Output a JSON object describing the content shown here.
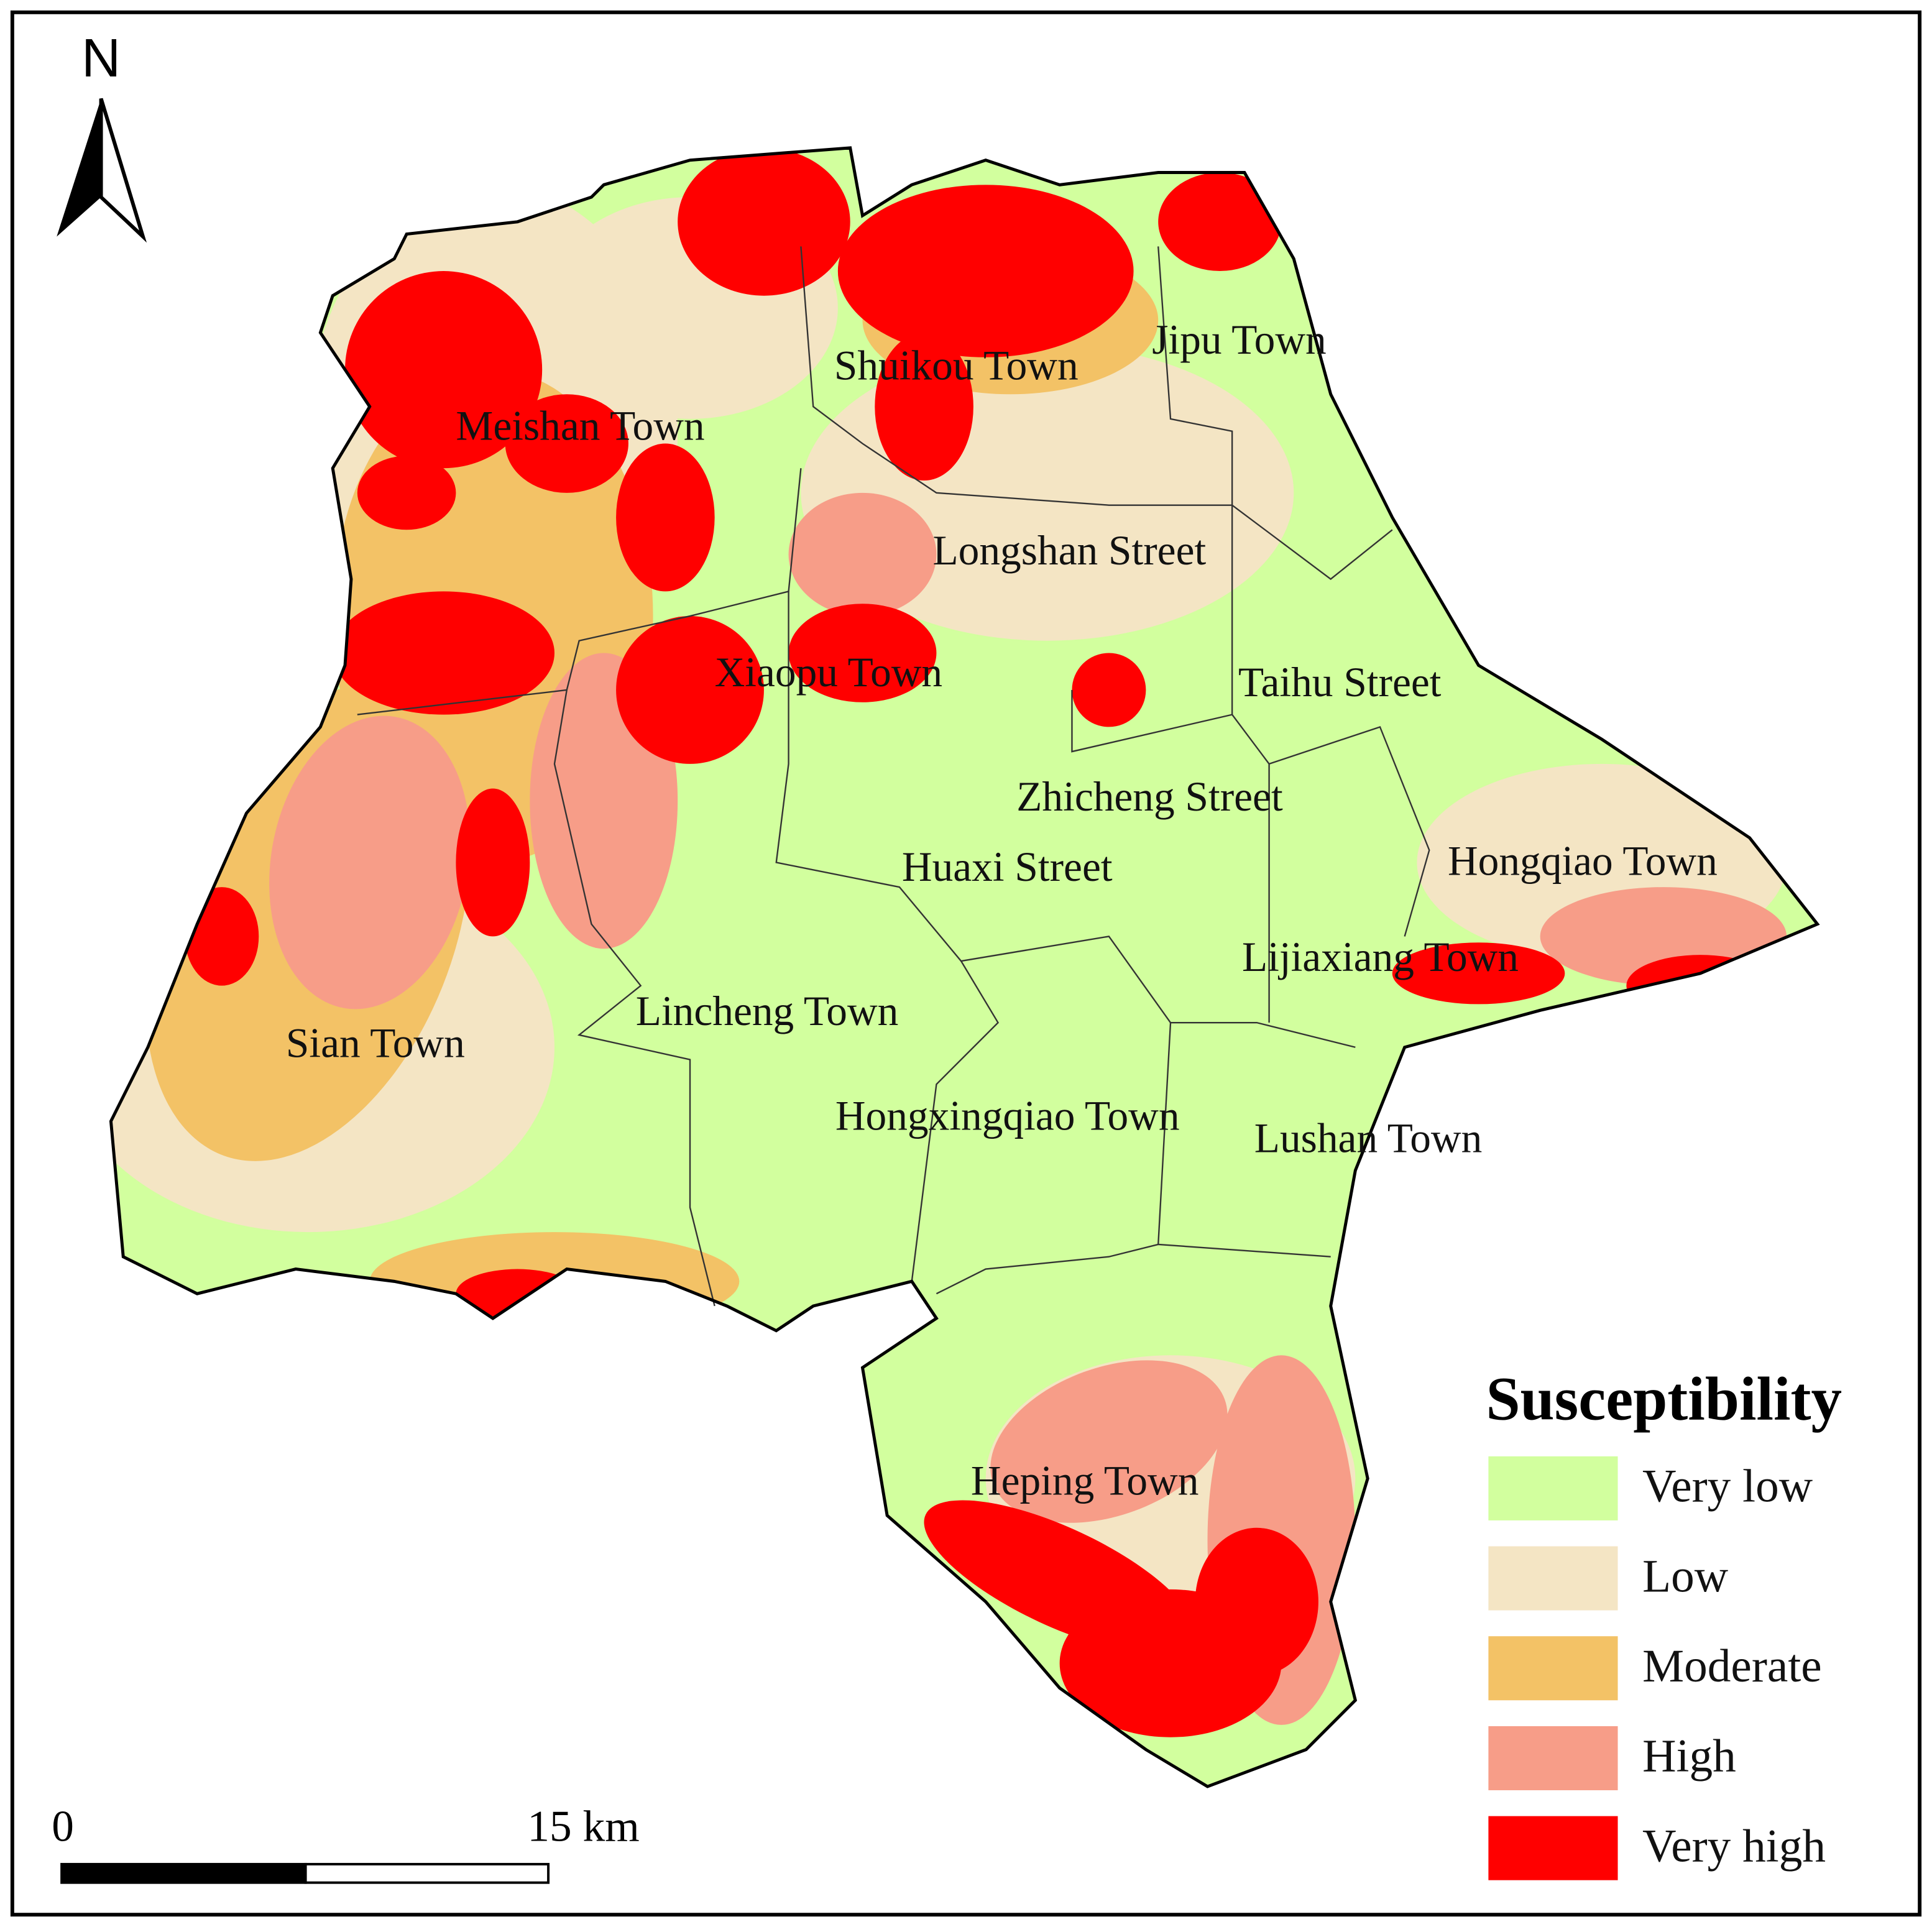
{
  "north_label": "N",
  "places": [
    "Jipu Town",
    "Shuikou Town",
    "Meishan Town",
    "Longshan Street",
    "Xiaopu Town",
    "Taihu Street",
    "Zhicheng Street",
    "Huaxi Street",
    "Hongqiao Town",
    "Lijiaxiang Town",
    "Lincheng Town",
    "Sian Town",
    "Hongxingqiao Town",
    "Lushan Town",
    "Heping Town"
  ],
  "legend": {
    "title": "Susceptibility",
    "items": [
      {
        "label": "Very low",
        "color": "#d2ff9e"
      },
      {
        "label": "Low",
        "color": "#f4e5c4"
      },
      {
        "label": "Moderate",
        "color": "#f3c266"
      },
      {
        "label": "High",
        "color": "#f79d88"
      },
      {
        "label": "Very high",
        "color": "#ff0000"
      }
    ]
  },
  "scale_bar": {
    "start": "0",
    "end": "15 km"
  }
}
